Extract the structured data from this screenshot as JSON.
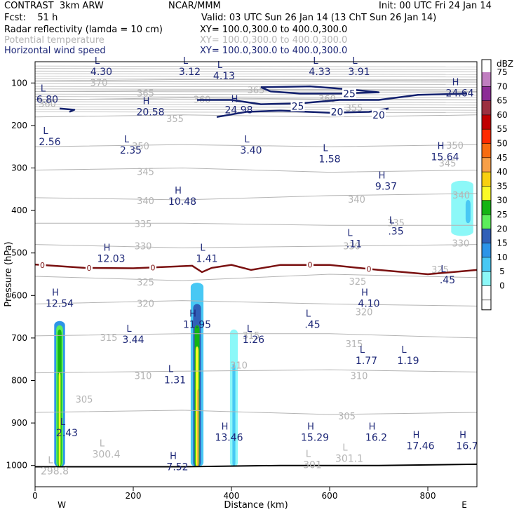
{
  "header": {
    "line1_left": "CONTRAST  3km ARW",
    "line1_center": "NCAR/MMM",
    "line1_right": "Init: 00 UTC Fri 24 Jan 14",
    "line2_left": "Fcst:    51 h",
    "line2_right": "Valid: 03 UTC Sun 26 Jan 14 (13 ChT Sun 26 Jan 14)",
    "field1_name": "Radar reflectivity (lamda = 10 cm)",
    "field1_xy": "XY= 100.0,300.0 to 400.0,300.0",
    "field2_name": "Potential temperature",
    "field2_xy": "XY= 100.0,300.0 to 400.0,300.0",
    "field3_name": "Horizontal wind speed",
    "field3_xy": "XY= 100.0,300.0 to 400.0,300.0"
  },
  "colors": {
    "theta": "#b4b4b4",
    "wind": "#12206e",
    "freezing_line": "#7a1010",
    "label_text": "#1e2878"
  },
  "chart_data": {
    "type": "heatmap",
    "title": "",
    "xlabel": "Distance (km)",
    "ylabel": "Pressure (hPa)",
    "xlim": [
      0,
      900
    ],
    "ylim": [
      1050,
      50
    ],
    "x_ticks": [
      0,
      200,
      400,
      600,
      800
    ],
    "y_ticks": [
      100,
      200,
      300,
      400,
      500,
      600,
      700,
      800,
      900,
      1000
    ],
    "x_end_labels": {
      "left": "W",
      "right": "E"
    },
    "colorbar": {
      "unit": "dBZ",
      "levels": [
        0,
        5,
        10,
        15,
        20,
        25,
        30,
        35,
        40,
        45,
        50,
        55,
        60,
        65,
        70,
        75
      ],
      "colors": [
        "#ffffff",
        "#8cf8f8",
        "#48c8f4",
        "#2c94e8",
        "#3060b8",
        "#5cee5c",
        "#14b414",
        "#fafa28",
        "#f8d010",
        "#f8a048",
        "#f86c10",
        "#ff2a00",
        "#c00000",
        "#9c3040",
        "#8c2c96",
        "#c07ec0"
      ]
    },
    "theta_contours": [
      {
        "level": 305,
        "p": [
          {
            "x": 0,
            "p": 875
          },
          {
            "x": 300,
            "p": 870
          },
          {
            "x": 600,
            "p": 880
          },
          {
            "x": 900,
            "p": 875
          }
        ],
        "label": {
          "x": 635,
          "p": 885
        }
      },
      {
        "level": 310,
        "p": [
          {
            "x": 0,
            "p": 782
          },
          {
            "x": 300,
            "p": 778
          },
          {
            "x": 600,
            "p": 775
          },
          {
            "x": 900,
            "p": 780
          }
        ],
        "label": {
          "x": 220,
          "p": 790
        }
      },
      {
        "level": 315,
        "p": [
          {
            "x": 0,
            "p": 695
          },
          {
            "x": 300,
            "p": 690
          },
          {
            "x": 600,
            "p": 690
          },
          {
            "x": 900,
            "p": 700
          }
        ],
        "label": {
          "x": 150,
          "p": 700
        }
      },
      {
        "level": 320,
        "p": [
          {
            "x": 0,
            "p": 620
          },
          {
            "x": 300,
            "p": 612
          },
          {
            "x": 600,
            "p": 620
          },
          {
            "x": 900,
            "p": 625
          }
        ],
        "label": {
          "x": 225,
          "p": 620
        }
      },
      {
        "level": 325,
        "p": [
          {
            "x": 0,
            "p": 555
          },
          {
            "x": 300,
            "p": 565
          },
          {
            "x": 600,
            "p": 550
          },
          {
            "x": 900,
            "p": 558
          }
        ],
        "label": {
          "x": 225,
          "p": 570
        }
      },
      {
        "level": 330,
        "p": [
          {
            "x": 0,
            "p": 480
          },
          {
            "x": 300,
            "p": 488
          },
          {
            "x": 600,
            "p": 484
          },
          {
            "x": 900,
            "p": 480
          }
        ],
        "label": {
          "x": 220,
          "p": 485
        }
      },
      {
        "level": 335,
        "p": [
          {
            "x": 0,
            "p": 430
          },
          {
            "x": 300,
            "p": 430
          },
          {
            "x": 600,
            "p": 435
          },
          {
            "x": 900,
            "p": 435
          }
        ],
        "label": {
          "x": 220,
          "p": 433
        }
      },
      {
        "level": 340,
        "p": [
          {
            "x": 0,
            "p": 370
          },
          {
            "x": 300,
            "p": 375
          },
          {
            "x": 600,
            "p": 365
          },
          {
            "x": 900,
            "p": 360
          }
        ],
        "label": {
          "x": 225,
          "p": 378
        }
      },
      {
        "level": 345,
        "p": [
          {
            "x": 0,
            "p": 305
          },
          {
            "x": 300,
            "p": 300
          },
          {
            "x": 600,
            "p": 310
          },
          {
            "x": 900,
            "p": 305
          }
        ],
        "label": {
          "x": 225,
          "p": 310
        }
      },
      {
        "level": 350,
        "p": [
          {
            "x": 0,
            "p": 250
          },
          {
            "x": 300,
            "p": 245
          },
          {
            "x": 600,
            "p": 250
          },
          {
            "x": 900,
            "p": 245
          }
        ],
        "label": {
          "x": 215,
          "p": 250
        }
      },
      {
        "level": 355,
        "p": [
          {
            "x": 0,
            "p": 180
          },
          {
            "x": 300,
            "p": 175
          },
          {
            "x": 600,
            "p": 180
          },
          {
            "x": 900,
            "p": 175
          }
        ],
        "label": {
          "x": 285,
          "p": 185
        }
      },
      {
        "level": 360,
        "p": [
          {
            "x": 0,
            "p": 140
          },
          {
            "x": 300,
            "p": 135
          },
          {
            "x": 600,
            "p": 138
          },
          {
            "x": 900,
            "p": 140
          }
        ],
        "label": {
          "x": 340,
          "p": 140
        }
      },
      {
        "level": 365,
        "p": [
          {
            "x": 0,
            "p": 120
          },
          {
            "x": 300,
            "p": 118
          },
          {
            "x": 600,
            "p": 118
          },
          {
            "x": 900,
            "p": 120
          }
        ],
        "label": {
          "x": 225,
          "p": 125
        }
      },
      {
        "level": 370,
        "p": [
          {
            "x": 0,
            "p": 95
          },
          {
            "x": 300,
            "p": 92
          },
          {
            "x": 600,
            "p": 93
          },
          {
            "x": 900,
            "p": 95
          }
        ],
        "label": {
          "x": 130,
          "p": 100
        }
      }
    ],
    "theta_labels": [
      {
        "text": "360",
        "x": 25,
        "p": 150
      },
      {
        "text": "365",
        "x": 450,
        "p": 118
      },
      {
        "text": "360",
        "x": 595,
        "p": 138
      },
      {
        "text": "355",
        "x": 650,
        "p": 160
      },
      {
        "text": "350",
        "x": 855,
        "p": 248
      },
      {
        "text": "345",
        "x": 840,
        "p": 290
      },
      {
        "text": "340",
        "x": 655,
        "p": 375
      },
      {
        "text": "340",
        "x": 868,
        "p": 365
      },
      {
        "text": "335",
        "x": 735,
        "p": 430
      },
      {
        "text": "330",
        "x": 645,
        "p": 485
      },
      {
        "text": "330",
        "x": 867,
        "p": 478
      },
      {
        "text": "325",
        "x": 657,
        "p": 568
      },
      {
        "text": "325",
        "x": 825,
        "p": 540
      },
      {
        "text": "320",
        "x": 670,
        "p": 640
      },
      {
        "text": "315",
        "x": 440,
        "p": 695
      },
      {
        "text": "315",
        "x": 650,
        "p": 715
      },
      {
        "text": "310",
        "x": 415,
        "p": 765
      },
      {
        "text": "310",
        "x": 660,
        "p": 790
      },
      {
        "text": "305",
        "x": 100,
        "p": 845
      }
    ],
    "freezing_line": {
      "level": 0,
      "points": [
        {
          "x": 0,
          "p": 527
        },
        {
          "x": 100,
          "p": 535
        },
        {
          "x": 200,
          "p": 536
        },
        {
          "x": 320,
          "p": 530
        },
        {
          "x": 340,
          "p": 545
        },
        {
          "x": 360,
          "p": 535
        },
        {
          "x": 400,
          "p": 528
        },
        {
          "x": 440,
          "p": 540
        },
        {
          "x": 500,
          "p": 528
        },
        {
          "x": 600,
          "p": 528
        },
        {
          "x": 700,
          "p": 540
        },
        {
          "x": 800,
          "p": 550
        },
        {
          "x": 900,
          "p": 540
        }
      ],
      "label_positions": [
        15,
        110,
        240,
        560,
        680
      ]
    },
    "wind_contours": [
      {
        "level": 20,
        "points": [
          {
            "x": 370,
            "p": 180
          },
          {
            "x": 430,
            "p": 168
          },
          {
            "x": 500,
            "p": 165
          },
          {
            "x": 600,
            "p": 170
          },
          {
            "x": 680,
            "p": 168
          },
          {
            "x": 720,
            "p": 160
          }
        ]
      },
      {
        "level": 25,
        "points": [
          {
            "x": 330,
            "p": 140
          },
          {
            "x": 400,
            "p": 140
          },
          {
            "x": 460,
            "p": 150
          },
          {
            "x": 540,
            "p": 148
          },
          {
            "x": 620,
            "p": 140
          },
          {
            "x": 700,
            "p": 140
          },
          {
            "x": 780,
            "p": 128
          },
          {
            "x": 880,
            "p": 125
          }
        ]
      },
      {
        "level": 25,
        "points": [
          {
            "x": 460,
            "p": 110
          },
          {
            "x": 560,
            "p": 108
          },
          {
            "x": 640,
            "p": 115
          },
          {
            "x": 700,
            "p": 122
          },
          {
            "x": 620,
            "p": 125
          },
          {
            "x": 540,
            "p": 125
          },
          {
            "x": 480,
            "p": 120
          },
          {
            "x": 460,
            "p": 110
          }
        ]
      },
      {
        "level": 25,
        "points": [
          {
            "x": 50,
            "p": 160
          },
          {
            "x": 80,
            "p": 163
          },
          {
            "x": 70,
            "p": 168
          }
        ]
      }
    ],
    "wind_contour_labels": [
      {
        "text": "25",
        "x": 535,
        "p": 155
      },
      {
        "text": "25",
        "x": 640,
        "p": 125
      },
      {
        "text": "20",
        "x": 615,
        "p": 168
      },
      {
        "text": "20",
        "x": 700,
        "p": 175
      }
    ],
    "wind_extrema": [
      {
        "type": "L",
        "value": "4.30",
        "x": 135,
        "p": 65
      },
      {
        "type": "L",
        "value": "3.12",
        "x": 315,
        "p": 65
      },
      {
        "type": "L",
        "value": "4.13",
        "x": 385,
        "p": 75
      },
      {
        "type": "L",
        "value": "4.33",
        "x": 580,
        "p": 65
      },
      {
        "type": "L",
        "value": "3.91",
        "x": 660,
        "p": 65
      },
      {
        "type": "L",
        "value": "6.80",
        "x": 25,
        "p": 130
      },
      {
        "type": "H",
        "value": "20.58",
        "x": 235,
        "p": 160
      },
      {
        "type": "H",
        "value": "24.98",
        "x": 415,
        "p": 155
      },
      {
        "type": "H",
        "value": "24.64",
        "x": 865,
        "p": 115
      },
      {
        "type": "L",
        "value": "2.56",
        "x": 30,
        "p": 230
      },
      {
        "type": "L",
        "value": "2.35",
        "x": 195,
        "p": 250
      },
      {
        "type": "L",
        "value": "3.40",
        "x": 440,
        "p": 250
      },
      {
        "type": "L",
        "value": "1.58",
        "x": 600,
        "p": 270
      },
      {
        "type": "H",
        "value": "15.64",
        "x": 835,
        "p": 265
      },
      {
        "type": "H",
        "value": "9.37",
        "x": 715,
        "p": 335
      },
      {
        "type": "H",
        "value": "10.48",
        "x": 300,
        "p": 370
      },
      {
        "type": "L",
        "value": ".35",
        "x": 735,
        "p": 440
      },
      {
        "type": "L",
        "value": ".11",
        "x": 650,
        "p": 470
      },
      {
        "type": "H",
        "value": "12.03",
        "x": 155,
        "p": 505
      },
      {
        "type": "L",
        "value": "1.41",
        "x": 350,
        "p": 505
      },
      {
        "type": "L",
        "value": ".45",
        "x": 840,
        "p": 555
      },
      {
        "type": "H",
        "value": "12.54",
        "x": 50,
        "p": 610
      },
      {
        "type": "H",
        "value": "4.10",
        "x": 680,
        "p": 610
      },
      {
        "type": "H",
        "value": "11.95",
        "x": 330,
        "p": 660
      },
      {
        "type": "L",
        "value": ".45",
        "x": 565,
        "p": 660
      },
      {
        "type": "L",
        "value": "3.44",
        "x": 200,
        "p": 695
      },
      {
        "type": "L",
        "value": "1.26",
        "x": 445,
        "p": 695
      },
      {
        "type": "L",
        "value": "1.77",
        "x": 675,
        "p": 745
      },
      {
        "type": "L",
        "value": "1.19",
        "x": 760,
        "p": 745
      },
      {
        "type": "L",
        "value": "1.31",
        "x": 285,
        "p": 790
      },
      {
        "type": "L",
        "value": "2.43",
        "x": 65,
        "p": 915
      },
      {
        "type": "H",
        "value": "13.46",
        "x": 395,
        "p": 925
      },
      {
        "type": "H",
        "value": "15.29",
        "x": 570,
        "p": 925
      },
      {
        "type": "H",
        "value": "16.2",
        "x": 695,
        "p": 925
      },
      {
        "type": "H",
        "value": "17.46",
        "x": 785,
        "p": 945
      },
      {
        "type": "H",
        "value": "16.7",
        "x": 880,
        "p": 945
      },
      {
        "type": "H",
        "value": "7.52",
        "x": 290,
        "p": 995
      }
    ],
    "theta_extrema": [
      {
        "type": "L",
        "value": "300.4",
        "x": 145,
        "p": 965
      },
      {
        "type": "L",
        "value": "301",
        "x": 565,
        "p": 990
      },
      {
        "type": "L",
        "value": "301.1",
        "x": 640,
        "p": 975
      },
      {
        "type": "L",
        "value": "298.8",
        "x": 40,
        "p": 1005
      }
    ],
    "reflectivity_cells": [
      {
        "x": 50,
        "width_km": 22,
        "top_p": 660,
        "dbz": 15
      },
      {
        "x": 50,
        "width_km": 14,
        "top_p": 670,
        "dbz": 25
      },
      {
        "x": 50,
        "width_km": 8,
        "top_p": 680,
        "dbz": 30
      },
      {
        "x": 50,
        "width_km": 4,
        "top_p": 780,
        "dbz": 35
      },
      {
        "x": 330,
        "width_km": 26,
        "top_p": 570,
        "dbz": 10
      },
      {
        "x": 330,
        "width_km": 16,
        "top_p": 620,
        "dbz": 20
      },
      {
        "x": 330,
        "width_km": 10,
        "top_p": 670,
        "dbz": 30
      },
      {
        "x": 330,
        "width_km": 6,
        "top_p": 720,
        "dbz": 35
      },
      {
        "x": 332,
        "width_km": 3,
        "top_p": 820,
        "dbz": 45
      },
      {
        "x": 405,
        "width_km": 16,
        "top_p": 680,
        "dbz": 5
      },
      {
        "x": 405,
        "width_km": 6,
        "top_p": 760,
        "dbz": 10
      },
      {
        "x": 870,
        "width_km": 45,
        "top_p": 330,
        "dbz": 5,
        "bottom_p": 460
      },
      {
        "x": 882,
        "width_km": 10,
        "top_p": 375,
        "dbz": 10,
        "bottom_p": 430
      }
    ],
    "surface_line": {
      "points": [
        {
          "x": 0,
          "p": 1003
        },
        {
          "x": 300,
          "p": 1003
        },
        {
          "x": 500,
          "p": 1000
        },
        {
          "x": 700,
          "p": 1000
        },
        {
          "x": 900,
          "p": 997
        }
      ]
    },
    "grid": false
  }
}
